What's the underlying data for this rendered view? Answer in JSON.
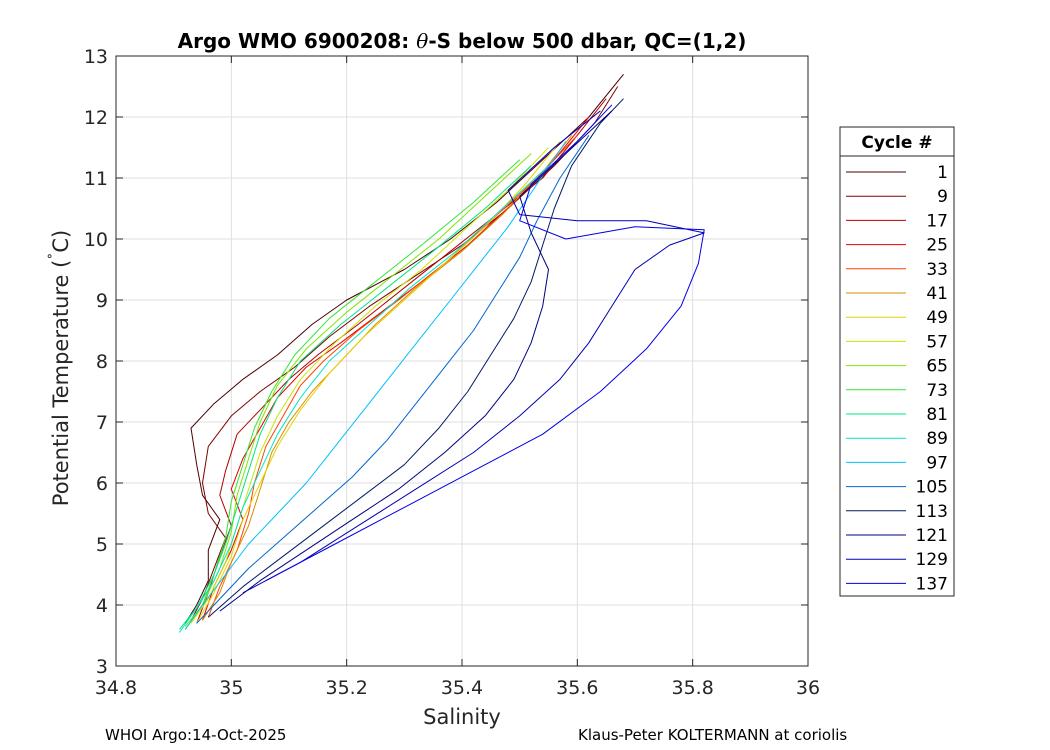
{
  "footer": {
    "left": "WHOI Argo:14-Oct-2025",
    "right": "Klaus-Peter KOLTERMANN at coriolis"
  },
  "chart_data": {
    "type": "line",
    "title": "Argo WMO 6900208: θ-S below 500 dbar,  QC=(1,2)",
    "title_parts": {
      "prefix": "Argo WMO 6900208: ",
      "theta": "θ",
      "suffix": "-S below 500 dbar,  QC=(1,2)"
    },
    "xlabel": "Salinity",
    "ylabel_parts": {
      "main": "Potential Temperature (",
      "degree": "˚",
      "unit": "C)"
    },
    "xlim": [
      34.8,
      36
    ],
    "ylim": [
      3,
      13
    ],
    "xticks": [
      34.8,
      35,
      35.2,
      35.4,
      35.6,
      35.8,
      36
    ],
    "xtick_labels": [
      "34.8",
      "35",
      "35.2",
      "35.4",
      "35.6",
      "35.8",
      "36"
    ],
    "yticks": [
      3,
      4,
      5,
      6,
      7,
      8,
      9,
      10,
      11,
      12,
      13
    ],
    "ytick_labels": [
      "3",
      "4",
      "5",
      "6",
      "7",
      "8",
      "9",
      "10",
      "11",
      "12",
      "13"
    ],
    "grid": true,
    "legend_title": "Cycle #",
    "legend_position": "right",
    "series": [
      {
        "name": "1",
        "color": "#4a0000",
        "values": [
          [
            34.92,
            3.7
          ],
          [
            34.94,
            4.0
          ],
          [
            34.96,
            4.4
          ],
          [
            34.96,
            4.9
          ],
          [
            34.98,
            5.4
          ],
          [
            34.95,
            5.8
          ],
          [
            34.94,
            6.3
          ],
          [
            34.93,
            6.9
          ],
          [
            34.97,
            7.3
          ],
          [
            35.02,
            7.7
          ],
          [
            35.08,
            8.1
          ],
          [
            35.14,
            8.6
          ],
          [
            35.2,
            9.0
          ],
          [
            35.3,
            9.5
          ],
          [
            35.38,
            10.0
          ],
          [
            35.46,
            10.6
          ],
          [
            35.54,
            11.3
          ],
          [
            35.62,
            12.0
          ],
          [
            35.68,
            12.7
          ]
        ]
      },
      {
        "name": "9",
        "color": "#800000",
        "values": [
          [
            34.93,
            3.75
          ],
          [
            34.95,
            4.1
          ],
          [
            34.97,
            4.6
          ],
          [
            34.99,
            5.1
          ],
          [
            34.96,
            5.5
          ],
          [
            34.95,
            6.0
          ],
          [
            34.96,
            6.6
          ],
          [
            35.0,
            7.1
          ],
          [
            35.05,
            7.5
          ],
          [
            35.11,
            7.9
          ],
          [
            35.17,
            8.4
          ],
          [
            35.24,
            8.9
          ],
          [
            35.32,
            9.4
          ],
          [
            35.4,
            9.9
          ],
          [
            35.48,
            10.5
          ],
          [
            35.56,
            11.2
          ],
          [
            35.63,
            11.9
          ],
          [
            35.67,
            12.5
          ]
        ]
      },
      {
        "name": "17",
        "color": "#b30000",
        "values": [
          [
            34.94,
            3.7
          ],
          [
            34.96,
            4.2
          ],
          [
            34.98,
            4.8
          ],
          [
            35.0,
            5.3
          ],
          [
            34.98,
            5.8
          ],
          [
            34.99,
            6.2
          ],
          [
            35.01,
            6.8
          ],
          [
            35.05,
            7.2
          ],
          [
            35.1,
            7.7
          ],
          [
            35.15,
            8.1
          ],
          [
            35.22,
            8.6
          ],
          [
            35.3,
            9.2
          ],
          [
            35.38,
            9.8
          ],
          [
            35.46,
            10.4
          ],
          [
            35.54,
            11.0
          ],
          [
            35.6,
            11.7
          ],
          [
            35.65,
            12.3
          ]
        ]
      },
      {
        "name": "25",
        "color": "#e60000",
        "values": [
          [
            34.95,
            3.75
          ],
          [
            34.97,
            4.3
          ],
          [
            35.0,
            4.9
          ],
          [
            35.02,
            5.4
          ],
          [
            35.0,
            5.9
          ],
          [
            35.02,
            6.4
          ],
          [
            35.05,
            6.9
          ],
          [
            35.08,
            7.4
          ],
          [
            35.13,
            7.9
          ],
          [
            35.19,
            8.3
          ],
          [
            35.26,
            8.8
          ],
          [
            35.33,
            9.3
          ],
          [
            35.41,
            9.9
          ],
          [
            35.49,
            10.6
          ],
          [
            35.56,
            11.3
          ],
          [
            35.62,
            12.0
          ]
        ]
      },
      {
        "name": "33",
        "color": "#ff4000",
        "values": [
          [
            34.96,
            3.8
          ],
          [
            34.98,
            4.3
          ],
          [
            35.01,
            4.9
          ],
          [
            35.03,
            5.5
          ],
          [
            35.04,
            6.0
          ],
          [
            35.06,
            6.6
          ],
          [
            35.09,
            7.1
          ],
          [
            35.12,
            7.6
          ],
          [
            35.16,
            8.0
          ],
          [
            35.22,
            8.5
          ],
          [
            35.29,
            9.0
          ],
          [
            35.37,
            9.6
          ],
          [
            35.45,
            10.3
          ],
          [
            35.53,
            11.0
          ],
          [
            35.6,
            11.7
          ]
        ]
      },
      {
        "name": "41",
        "color": "#d98c00",
        "values": [
          [
            34.95,
            3.75
          ],
          [
            34.98,
            4.2
          ],
          [
            35.0,
            4.7
          ],
          [
            35.03,
            5.3
          ],
          [
            35.05,
            5.9
          ],
          [
            35.07,
            6.5
          ],
          [
            35.1,
            7.0
          ],
          [
            35.14,
            7.5
          ],
          [
            35.19,
            8.0
          ],
          [
            35.25,
            8.6
          ],
          [
            35.32,
            9.2
          ],
          [
            35.4,
            9.8
          ],
          [
            35.47,
            10.4
          ],
          [
            35.54,
            11.1
          ],
          [
            35.59,
            11.7
          ]
        ]
      },
      {
        "name": "49",
        "color": "#e6d200",
        "values": [
          [
            34.94,
            3.7
          ],
          [
            34.97,
            4.2
          ],
          [
            35.0,
            4.8
          ],
          [
            35.02,
            5.4
          ],
          [
            35.05,
            6.0
          ],
          [
            35.08,
            6.6
          ],
          [
            35.12,
            7.2
          ],
          [
            35.17,
            7.8
          ],
          [
            35.23,
            8.4
          ],
          [
            35.3,
            9.0
          ],
          [
            35.37,
            9.6
          ],
          [
            35.44,
            10.2
          ],
          [
            35.51,
            10.9
          ],
          [
            35.57,
            11.6
          ]
        ]
      },
      {
        "name": "57",
        "color": "#c8e600",
        "values": [
          [
            34.93,
            3.7
          ],
          [
            34.96,
            4.1
          ],
          [
            34.99,
            4.7
          ],
          [
            35.01,
            5.3
          ],
          [
            35.03,
            5.9
          ],
          [
            35.05,
            6.5
          ],
          [
            35.08,
            7.1
          ],
          [
            35.12,
            7.7
          ],
          [
            35.18,
            8.3
          ],
          [
            35.25,
            8.9
          ],
          [
            35.33,
            9.5
          ],
          [
            35.41,
            10.2
          ],
          [
            35.48,
            10.8
          ],
          [
            35.55,
            11.5
          ]
        ]
      },
      {
        "name": "65",
        "color": "#80e600",
        "values": [
          [
            34.92,
            3.65
          ],
          [
            34.95,
            4.0
          ],
          [
            34.98,
            4.6
          ],
          [
            35.0,
            5.2
          ],
          [
            35.01,
            5.8
          ],
          [
            35.03,
            6.4
          ],
          [
            35.05,
            7.0
          ],
          [
            35.08,
            7.6
          ],
          [
            35.13,
            8.2
          ],
          [
            35.2,
            8.8
          ],
          [
            35.28,
            9.4
          ],
          [
            35.36,
            10.0
          ],
          [
            35.44,
            10.7
          ],
          [
            35.52,
            11.4
          ]
        ]
      },
      {
        "name": "73",
        "color": "#33e633",
        "values": [
          [
            34.92,
            3.6
          ],
          [
            34.95,
            4.0
          ],
          [
            34.97,
            4.5
          ],
          [
            34.99,
            5.1
          ],
          [
            35.0,
            5.7
          ],
          [
            35.02,
            6.3
          ],
          [
            35.04,
            6.9
          ],
          [
            35.07,
            7.5
          ],
          [
            35.11,
            8.1
          ],
          [
            35.17,
            8.7
          ],
          [
            35.25,
            9.3
          ],
          [
            35.33,
            9.9
          ],
          [
            35.42,
            10.6
          ],
          [
            35.5,
            11.3
          ]
        ]
      },
      {
        "name": "81",
        "color": "#00e680",
        "values": [
          [
            34.91,
            3.6
          ],
          [
            34.94,
            3.95
          ],
          [
            34.97,
            4.5
          ],
          [
            34.99,
            5.0
          ],
          [
            35.01,
            5.6
          ],
          [
            35.03,
            6.2
          ],
          [
            35.05,
            6.8
          ],
          [
            35.08,
            7.4
          ],
          [
            35.12,
            8.0
          ],
          [
            35.19,
            8.6
          ],
          [
            35.27,
            9.2
          ],
          [
            35.35,
            9.8
          ],
          [
            35.44,
            10.5
          ],
          [
            35.52,
            11.2
          ]
        ]
      },
      {
        "name": "89",
        "color": "#00e6c8",
        "values": [
          [
            34.91,
            3.55
          ],
          [
            34.94,
            3.95
          ],
          [
            34.97,
            4.4
          ],
          [
            35.0,
            5.0
          ],
          [
            35.02,
            5.6
          ],
          [
            35.05,
            6.2
          ],
          [
            35.08,
            6.8
          ],
          [
            35.12,
            7.4
          ],
          [
            35.17,
            8.0
          ],
          [
            35.24,
            8.6
          ],
          [
            35.31,
            9.2
          ],
          [
            35.39,
            9.8
          ],
          [
            35.47,
            10.5
          ],
          [
            35.55,
            11.2
          ]
        ]
      },
      {
        "name": "97",
        "color": "#00bfff",
        "values": [
          [
            34.92,
            3.6
          ],
          [
            34.95,
            4.0
          ],
          [
            34.99,
            4.5
          ],
          [
            35.03,
            5.0
          ],
          [
            35.08,
            5.5
          ],
          [
            35.13,
            6.0
          ],
          [
            35.18,
            6.6
          ],
          [
            35.23,
            7.2
          ],
          [
            35.28,
            7.8
          ],
          [
            35.33,
            8.4
          ],
          [
            35.38,
            9.0
          ],
          [
            35.43,
            9.6
          ],
          [
            35.48,
            10.2
          ],
          [
            35.53,
            10.9
          ],
          [
            35.58,
            11.6
          ]
        ]
      },
      {
        "name": "105",
        "color": "#0066cc",
        "values": [
          [
            34.94,
            3.7
          ],
          [
            34.98,
            4.1
          ],
          [
            35.03,
            4.6
          ],
          [
            35.09,
            5.1
          ],
          [
            35.15,
            5.6
          ],
          [
            35.21,
            6.1
          ],
          [
            35.27,
            6.7
          ],
          [
            35.32,
            7.3
          ],
          [
            35.37,
            7.9
          ],
          [
            35.42,
            8.5
          ],
          [
            35.46,
            9.1
          ],
          [
            35.5,
            9.7
          ],
          [
            35.53,
            10.3
          ],
          [
            35.57,
            11.0
          ],
          [
            35.62,
            11.7
          ]
        ]
      },
      {
        "name": "113",
        "color": "#001a66",
        "values": [
          [
            34.96,
            3.8
          ],
          [
            35.02,
            4.3
          ],
          [
            35.09,
            4.8
          ],
          [
            35.16,
            5.3
          ],
          [
            35.23,
            5.8
          ],
          [
            35.3,
            6.3
          ],
          [
            35.36,
            6.9
          ],
          [
            35.41,
            7.5
          ],
          [
            35.45,
            8.1
          ],
          [
            35.49,
            8.7
          ],
          [
            35.52,
            9.3
          ],
          [
            35.54,
            9.9
          ],
          [
            35.56,
            10.5
          ],
          [
            35.59,
            11.2
          ],
          [
            35.64,
            11.9
          ],
          [
            35.68,
            12.3
          ]
        ]
      },
      {
        "name": "121",
        "color": "#000080",
        "values": [
          [
            34.98,
            3.9
          ],
          [
            35.05,
            4.4
          ],
          [
            35.13,
            4.9
          ],
          [
            35.21,
            5.4
          ],
          [
            35.29,
            5.9
          ],
          [
            35.37,
            6.5
          ],
          [
            35.44,
            7.1
          ],
          [
            35.49,
            7.7
          ],
          [
            35.52,
            8.3
          ],
          [
            35.54,
            8.9
          ],
          [
            35.55,
            9.5
          ],
          [
            35.52,
            10.1
          ],
          [
            35.5,
            10.7
          ],
          [
            35.58,
            11.4
          ],
          [
            35.66,
            12.1
          ]
        ]
      },
      {
        "name": "129",
        "color": "#0000b3",
        "values": [
          [
            35.02,
            4.2
          ],
          [
            35.12,
            4.7
          ],
          [
            35.22,
            5.3
          ],
          [
            35.32,
            5.9
          ],
          [
            35.42,
            6.5
          ],
          [
            35.5,
            7.1
          ],
          [
            35.57,
            7.7
          ],
          [
            35.62,
            8.3
          ],
          [
            35.66,
            8.9
          ],
          [
            35.7,
            9.5
          ],
          [
            35.76,
            9.9
          ],
          [
            35.82,
            10.1
          ],
          [
            35.72,
            10.3
          ],
          [
            35.6,
            10.3
          ],
          [
            35.5,
            10.4
          ],
          [
            35.48,
            10.8
          ],
          [
            35.56,
            11.5
          ],
          [
            35.64,
            12.1
          ]
        ]
      },
      {
        "name": "137",
        "color": "#0000e6",
        "values": [
          [
            35.06,
            4.4
          ],
          [
            35.18,
            5.0
          ],
          [
            35.3,
            5.6
          ],
          [
            35.42,
            6.2
          ],
          [
            35.54,
            6.8
          ],
          [
            35.64,
            7.5
          ],
          [
            35.72,
            8.2
          ],
          [
            35.78,
            8.9
          ],
          [
            35.81,
            9.6
          ],
          [
            35.82,
            10.15
          ],
          [
            35.7,
            10.2
          ],
          [
            35.58,
            10.0
          ],
          [
            35.5,
            10.3
          ],
          [
            35.52,
            10.9
          ],
          [
            35.6,
            11.6
          ],
          [
            35.66,
            12.2
          ]
        ]
      }
    ]
  }
}
